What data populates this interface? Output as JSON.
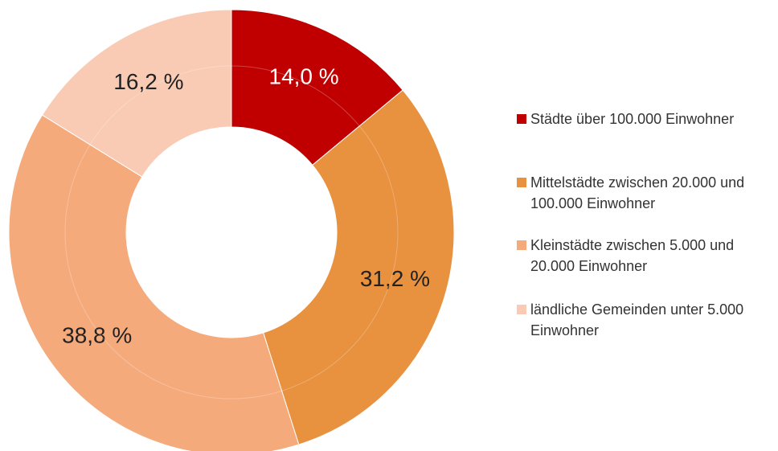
{
  "chart_data": {
    "type": "pie",
    "donut": true,
    "categories": [
      "Städte über 100.000 Einwohner",
      "Mittelstädte zwischen 20.000 und 100.000 Einwohner",
      "Kleinstädte zwischen 5.000 und 20.000 Einwohner",
      "ländliche Gemeinden unter 5.000 Einwohner"
    ],
    "values": [
      14.0,
      31.2,
      38.8,
      16.2
    ],
    "value_labels": [
      "14,0 %",
      "31,2 %",
      "38,8 %",
      "16,2 %"
    ],
    "colors": [
      "#c00000",
      "#e8913f",
      "#f5aa7c",
      "#f9cbb5"
    ],
    "legend": "right"
  }
}
